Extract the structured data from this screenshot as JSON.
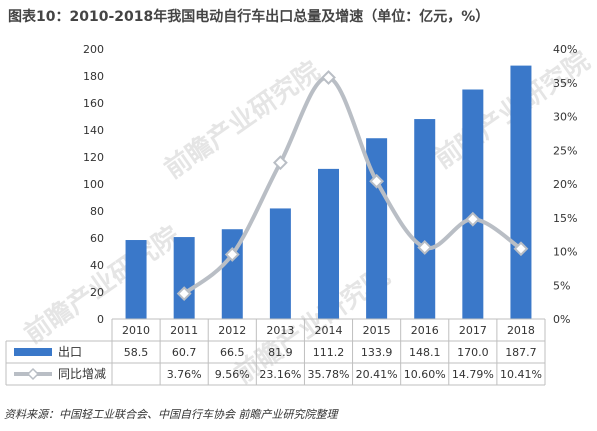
{
  "title": "图表10：2010-2018年我国电动自行车出口总量及增速（单位：亿元，%）",
  "source": "资料来源：中国轻工业联合会、中国自行车协会 前瞻产业研究院整理",
  "watermark": "前瞻产业研究院",
  "colors": {
    "bar": "#3a78c9",
    "line": "#b9bec5",
    "marker": "#ffffff",
    "grid": "#d9d9d9",
    "axis_text": "#333333"
  },
  "chart_data": {
    "type": "bar",
    "categories": [
      "2010",
      "2011",
      "2012",
      "2013",
      "2014",
      "2015",
      "2016",
      "2017",
      "2018"
    ],
    "series": [
      {
        "name": "出口",
        "type": "bar",
        "axis": "left",
        "values": [
          58.5,
          60.7,
          66.5,
          81.9,
          111.2,
          133.9,
          148.1,
          170.0,
          187.7
        ],
        "labels": [
          "58.5",
          "60.7",
          "66.5",
          "81.9",
          "111.2",
          "133.9",
          "148.1",
          "170.0",
          "187.7"
        ]
      },
      {
        "name": "同比增减",
        "type": "line",
        "axis": "right",
        "values": [
          null,
          3.76,
          9.56,
          23.16,
          35.78,
          20.41,
          10.6,
          14.79,
          10.41
        ],
        "labels": [
          "",
          "3.76%",
          "9.56%",
          "23.16%",
          "35.78%",
          "20.41%",
          "10.60%",
          "14.79%",
          "10.41%"
        ]
      }
    ],
    "y_left": {
      "min": 0,
      "max": 200,
      "ticks": [
        "0",
        "20",
        "40",
        "60",
        "80",
        "100",
        "120",
        "140",
        "160",
        "180",
        "200"
      ]
    },
    "y_right": {
      "min": 0,
      "max": 40,
      "ticks": [
        "0%",
        "5%",
        "10%",
        "15%",
        "20%",
        "25%",
        "30%",
        "35%",
        "40%"
      ]
    },
    "legend": "data-table",
    "grid": false
  }
}
